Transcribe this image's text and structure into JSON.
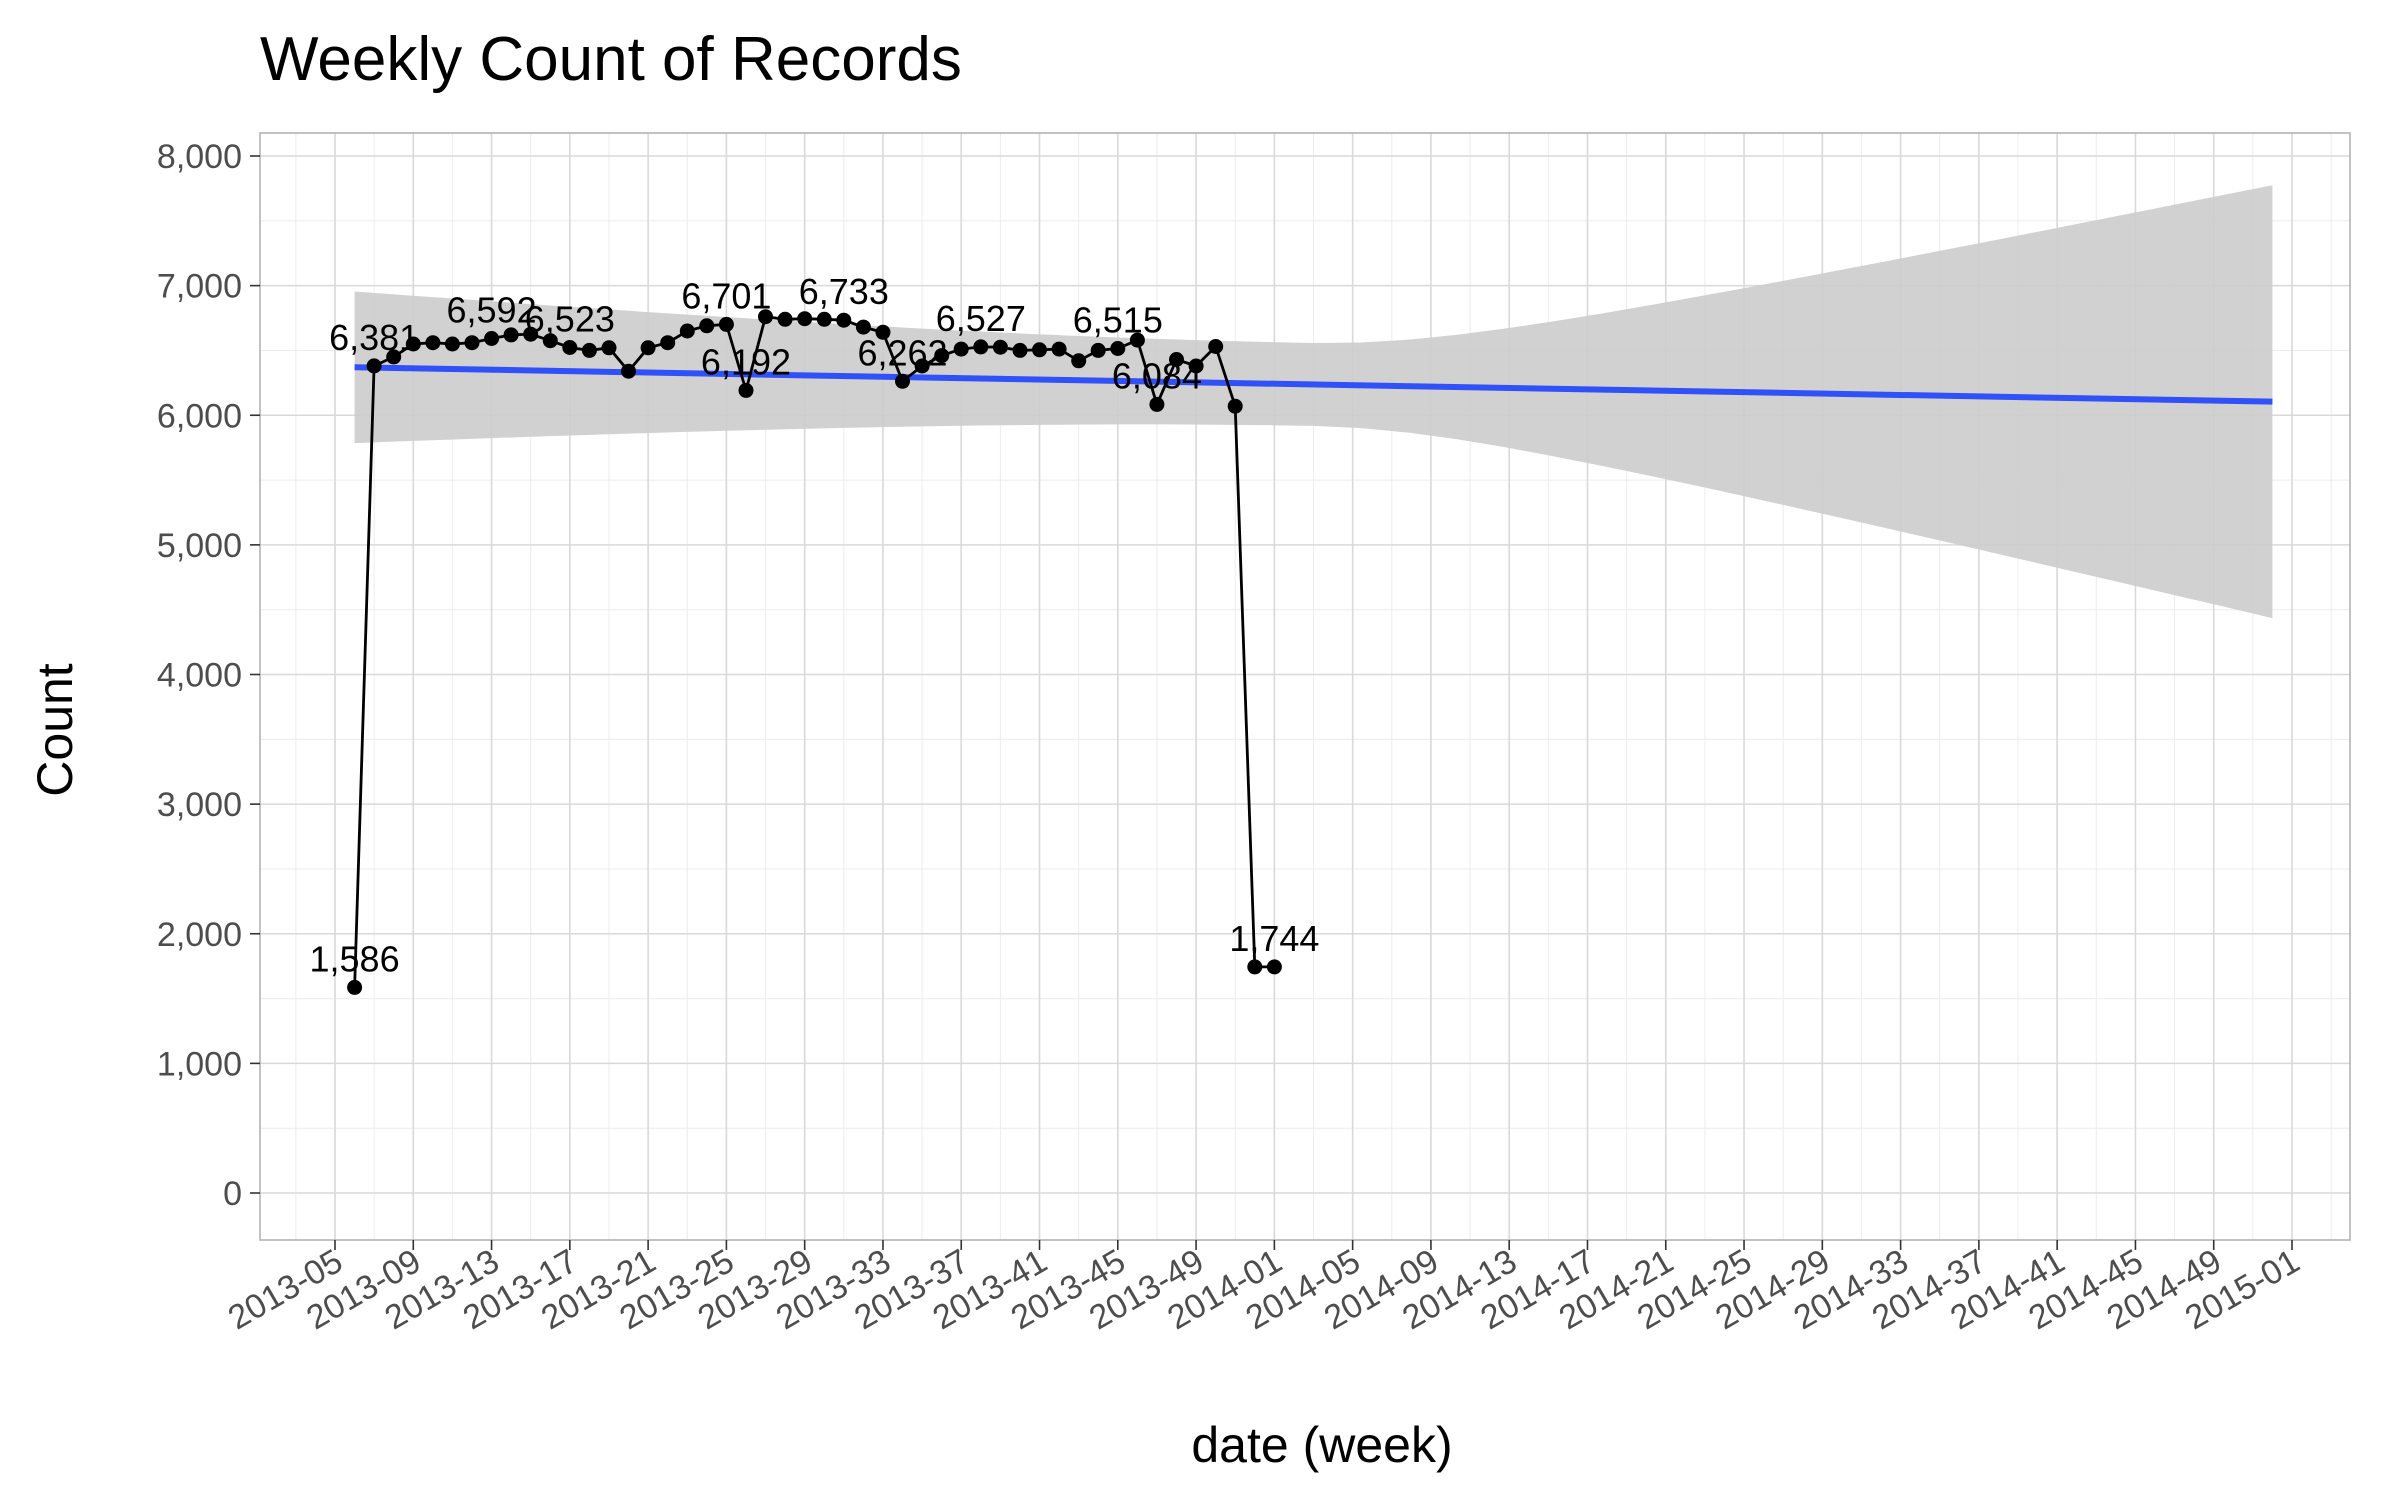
{
  "chart_data": {
    "type": "line",
    "title": "Weekly Count of Records",
    "xlabel": "date (week)",
    "ylabel": "Count",
    "ylim": [
      0,
      8000
    ],
    "y_ticks": [
      0,
      1000,
      2000,
      3000,
      4000,
      5000,
      6000,
      7000,
      8000
    ],
    "y_tick_labels": [
      "0",
      "1,000",
      "2,000",
      "3,000",
      "4,000",
      "5,000",
      "6,000",
      "7,000",
      "8,000"
    ],
    "x_tick_labels": [
      "2013-05",
      "2013-09",
      "2013-13",
      "2013-17",
      "2013-21",
      "2013-25",
      "2013-29",
      "2013-33",
      "2013-37",
      "2013-41",
      "2013-45",
      "2013-49",
      "2014-01",
      "2014-05",
      "2014-09",
      "2014-13",
      "2014-17",
      "2014-21",
      "2014-25",
      "2014-29",
      "2014-33",
      "2014-37",
      "2014-41",
      "2014-45",
      "2014-49",
      "2015-01"
    ],
    "grid": true,
    "series": [
      {
        "color": "#000000",
        "x": [
          "2013-06",
          "2013-07",
          "2013-08",
          "2013-09",
          "2013-10",
          "2013-11",
          "2013-12",
          "2013-13",
          "2013-14",
          "2013-15",
          "2013-16",
          "2013-17",
          "2013-18",
          "2013-19",
          "2013-20",
          "2013-21",
          "2013-22",
          "2013-23",
          "2013-24",
          "2013-25",
          "2013-26",
          "2013-27",
          "2013-28",
          "2013-29",
          "2013-30",
          "2013-31",
          "2013-32",
          "2013-33",
          "2013-34",
          "2013-35",
          "2013-36",
          "2013-37",
          "2013-38",
          "2013-39",
          "2013-40",
          "2013-41",
          "2013-42",
          "2013-43",
          "2013-44",
          "2013-45",
          "2013-46",
          "2013-47",
          "2013-48",
          "2013-49",
          "2013-50",
          "2013-51",
          "2013-52",
          "2014-01"
        ],
        "values": [
          1586,
          6381,
          6450,
          6550,
          6560,
          6550,
          6560,
          6592,
          6620,
          6625,
          6575,
          6523,
          6500,
          6520,
          6340,
          6520,
          6560,
          6650,
          6690,
          6701,
          6192,
          6760,
          6740,
          6745,
          6740,
          6733,
          6680,
          6640,
          6262,
          6380,
          6460,
          6510,
          6527,
          6525,
          6500,
          6505,
          6510,
          6420,
          6500,
          6515,
          6580,
          6084,
          6430,
          6380,
          6530,
          6070,
          1744,
          1744
        ]
      }
    ],
    "trend": {
      "method": "linear",
      "color": "#3050f8",
      "band_color": "#cccccc",
      "x_range": [
        "2013-06",
        "2014-52"
      ],
      "fit_start": 6370,
      "fit_end": 6105,
      "band_start": [
        5790,
        6960
      ],
      "band_end": [
        4440,
        7780
      ]
    },
    "point_labels": [
      {
        "x": "2013-06",
        "text": "1,586"
      },
      {
        "x": "2013-07",
        "text": "6,381"
      },
      {
        "x": "2013-13",
        "text": "6,592"
      },
      {
        "x": "2013-17",
        "text": "6,523"
      },
      {
        "x": "2013-25",
        "text": "6,701"
      },
      {
        "x": "2013-26",
        "text": "6,192"
      },
      {
        "x": "2013-31",
        "text": "6,733"
      },
      {
        "x": "2013-34",
        "text": "6,262"
      },
      {
        "x": "2013-38",
        "text": "6,527"
      },
      {
        "x": "2013-45",
        "text": "6,515"
      },
      {
        "x": "2013-47",
        "text": "6,084"
      },
      {
        "x": "2014-01",
        "text": "1,744"
      }
    ]
  }
}
